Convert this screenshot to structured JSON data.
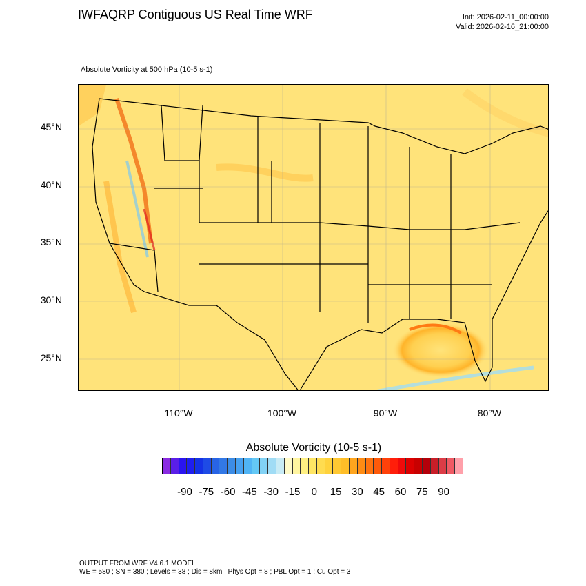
{
  "header": {
    "title": "IWFAQRP Contiguous US Real Time WRF",
    "init": "Init: 2026-02-11_00:00:00",
    "valid": "Valid: 2026-02-16_21:00:00",
    "field": "Absolute Vorticity at 500 hPa   (10-5 s-1)"
  },
  "map": {
    "lat_labels": [
      "45°N",
      "40°N",
      "35°N",
      "30°N",
      "25°N"
    ],
    "lon_labels": [
      "110°W",
      "100°W",
      "90°W",
      "80°W"
    ],
    "colors": {
      "background": "#ffe37a",
      "positive_accent": "#f0600a",
      "negative_accent": "#7ec8f0",
      "state_lines": "#000000"
    }
  },
  "colorbar": {
    "title": "Absolute Vorticity  (10-5 s-1)",
    "tick_labels": [
      "-90",
      "-75",
      "-60",
      "-45",
      "-30",
      "-15",
      "0",
      "15",
      "30",
      "45",
      "60",
      "75",
      "90"
    ],
    "colors": [
      "#8a2be2",
      "#5a1ee8",
      "#2a14f0",
      "#1e1ef0",
      "#1432e6",
      "#1e4be6",
      "#2864e6",
      "#3278e6",
      "#3c8ce6",
      "#46a0f0",
      "#50b4f5",
      "#64c8f5",
      "#82d2f5",
      "#a0dcf5",
      "#c8ebf5",
      "#fffac8",
      "#fff5a0",
      "#fff082",
      "#ffe664",
      "#ffdc50",
      "#ffd23c",
      "#ffc832",
      "#ffbe28",
      "#ffa51e",
      "#ff8c14",
      "#ff730f",
      "#ff5a0a",
      "#ff410a",
      "#ff1e0a",
      "#f00a0a",
      "#dc0000",
      "#c80000",
      "#b4000a",
      "#c81e28",
      "#dc3c46",
      "#f05a64",
      "#ffa0aa"
    ]
  },
  "footer": {
    "line1": "OUTPUT FROM WRF V4.6.1 MODEL",
    "line2": "WE = 580 ; SN = 380 ; Levels = 38 ; Dis = 8km ; Phys Opt = 8 ; PBL Opt = 1 ; Cu Opt = 3"
  }
}
